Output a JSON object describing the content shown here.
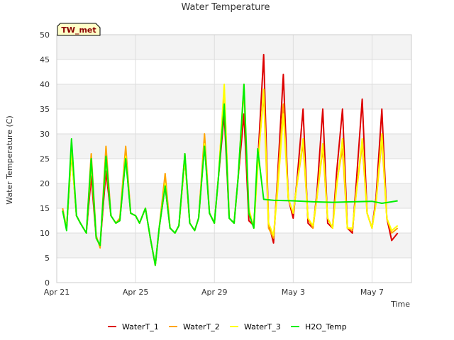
{
  "chart_data": {
    "type": "line",
    "title": "Water Temperature",
    "xlabel": "Time",
    "ylabel": "Water Temperature (C)",
    "badge": "TW_met",
    "x_unit": "days from Apr 21",
    "xlim": [
      0,
      18
    ],
    "ylim": [
      0,
      50
    ],
    "yticks": [
      0,
      5,
      10,
      15,
      20,
      25,
      30,
      35,
      40,
      45,
      50
    ],
    "xticks": [
      {
        "value": 0,
        "label": "Apr 21"
      },
      {
        "value": 4,
        "label": "Apr 25"
      },
      {
        "value": 8,
        "label": "Apr 29"
      },
      {
        "value": 12,
        "label": "May 3"
      },
      {
        "value": 16,
        "label": "May 7"
      }
    ],
    "grid": true,
    "legend_position": "bottom",
    "series": [
      {
        "name": "WaterT_1",
        "color": "#dd0000",
        "x": [
          0.3,
          0.5,
          0.75,
          1.0,
          1.2,
          1.5,
          1.75,
          2.0,
          2.2,
          2.5,
          2.75,
          3.0,
          3.2,
          3.5,
          3.75,
          4.0,
          4.2,
          4.5,
          4.75,
          5.0,
          5.2,
          5.5,
          5.75,
          6.0,
          6.2,
          6.5,
          6.75,
          7.0,
          7.2,
          7.5,
          7.75,
          8.0,
          8.2,
          8.5,
          8.75,
          9.0,
          9.2,
          9.5,
          9.75,
          10.0,
          10.2,
          10.5,
          10.75,
          11.0,
          11.2,
          11.5,
          11.75,
          12.0,
          12.2,
          12.5,
          12.75,
          13.0,
          13.2,
          13.5,
          13.75,
          14.0,
          14.2,
          14.5,
          14.75,
          15.0,
          15.2,
          15.5,
          15.75,
          16.0,
          16.2,
          16.5,
          16.75,
          17.0,
          17.3
        ],
        "y": [
          14.5,
          11.0,
          26.5,
          13.5,
          12.0,
          10.0,
          21.5,
          9.0,
          7.5,
          22.5,
          13.5,
          12.0,
          12.5,
          25.5,
          14.0,
          13.5,
          12.0,
          15.0,
          9.0,
          3.5,
          11.0,
          19.5,
          11.0,
          10.0,
          11.5,
          25.0,
          12.0,
          10.5,
          13.0,
          28.0,
          14.0,
          12.0,
          21.0,
          34.0,
          13.0,
          12.0,
          21.0,
          34.0,
          12.5,
          11.5,
          24.0,
          46.0,
          12.0,
          8.0,
          21.0,
          42.0,
          17.0,
          13.0,
          21.0,
          35.0,
          12.0,
          11.0,
          18.0,
          35.0,
          12.0,
          11.0,
          22.0,
          35.0,
          11.0,
          10.0,
          20.0,
          37.0,
          14.0,
          11.0,
          17.0,
          35.0,
          13.0,
          8.5,
          10.0
        ]
      },
      {
        "name": "WaterT_2",
        "color": "#ffa500",
        "x": [
          0.3,
          0.5,
          0.75,
          1.0,
          1.2,
          1.5,
          1.75,
          2.0,
          2.2,
          2.5,
          2.75,
          3.0,
          3.2,
          3.5,
          3.75,
          4.0,
          4.2,
          4.5,
          4.75,
          5.0,
          5.2,
          5.5,
          5.75,
          6.0,
          6.2,
          6.5,
          6.75,
          7.0,
          7.2,
          7.5,
          7.75,
          8.0,
          8.2,
          8.5,
          8.75,
          9.0,
          9.2,
          9.5,
          9.75,
          10.0,
          10.2,
          10.5,
          10.75,
          11.0,
          11.2,
          11.5,
          11.75,
          12.0,
          12.2,
          12.5,
          12.75,
          13.0,
          13.2,
          13.5,
          13.75,
          14.0,
          14.2,
          14.5,
          14.75,
          15.0,
          15.2,
          15.5,
          15.75,
          16.0,
          16.2,
          16.5,
          16.75,
          17.0,
          17.3
        ],
        "y": [
          15.0,
          11.0,
          26.0,
          13.5,
          12.0,
          10.0,
          26.0,
          9.5,
          7.0,
          27.5,
          13.5,
          12.0,
          13.0,
          27.5,
          14.0,
          13.5,
          12.0,
          15.0,
          9.0,
          3.5,
          11.0,
          22.0,
          11.0,
          10.0,
          11.5,
          26.0,
          12.0,
          10.5,
          13.0,
          30.0,
          14.0,
          12.0,
          21.0,
          39.0,
          13.0,
          12.0,
          21.0,
          39.0,
          14.0,
          11.0,
          24.0,
          38.0,
          11.0,
          9.0,
          20.0,
          36.0,
          17.0,
          14.0,
          20.0,
          28.0,
          13.0,
          11.0,
          17.0,
          27.0,
          13.0,
          11.0,
          20.0,
          27.0,
          11.0,
          10.5,
          18.0,
          28.0,
          14.0,
          11.0,
          16.0,
          29.0,
          13.0,
          10.0,
          11.0
        ]
      },
      {
        "name": "WaterT_3",
        "color": "#ffff00",
        "x": [
          0.3,
          0.5,
          0.75,
          1.0,
          1.2,
          1.5,
          1.75,
          2.0,
          2.2,
          2.5,
          2.75,
          3.0,
          3.2,
          3.5,
          3.75,
          4.0,
          4.2,
          4.5,
          4.75,
          5.0,
          5.2,
          5.5,
          5.75,
          6.0,
          6.2,
          6.5,
          6.75,
          7.0,
          7.2,
          7.5,
          7.75,
          8.0,
          8.2,
          8.5,
          8.75,
          9.0,
          9.2,
          9.5,
          9.75,
          10.0,
          10.2,
          10.5,
          10.75,
          11.0,
          11.2,
          11.5,
          11.75,
          12.0,
          12.2,
          12.5,
          12.75,
          13.0,
          13.2,
          13.5,
          13.75,
          14.0,
          14.2,
          14.5,
          14.75,
          15.0,
          15.2,
          15.5,
          15.75,
          16.0,
          16.2,
          16.5,
          16.75,
          17.0,
          17.3
        ],
        "y": [
          14.5,
          11.0,
          26.5,
          13.5,
          12.0,
          10.0,
          24.0,
          9.0,
          7.5,
          25.0,
          13.5,
          12.0,
          12.5,
          25.5,
          14.0,
          13.5,
          12.0,
          15.0,
          9.0,
          3.5,
          11.0,
          20.0,
          11.0,
          10.0,
          11.5,
          25.0,
          12.0,
          10.5,
          13.0,
          28.0,
          14.0,
          12.0,
          21.0,
          40.0,
          13.0,
          12.0,
          21.0,
          40.0,
          15.0,
          11.0,
          23.0,
          39.0,
          12.0,
          9.5,
          18.0,
          34.0,
          17.0,
          14.0,
          20.0,
          29.0,
          13.0,
          11.5,
          17.0,
          28.0,
          13.0,
          11.0,
          19.0,
          29.0,
          11.0,
          11.0,
          18.0,
          29.0,
          14.0,
          11.0,
          16.0,
          30.0,
          13.0,
          10.5,
          11.5
        ]
      },
      {
        "name": "H2O_Temp",
        "color": "#00ee00",
        "x": [
          0.3,
          0.5,
          0.75,
          1.0,
          1.2,
          1.5,
          1.75,
          2.0,
          2.2,
          2.5,
          2.75,
          3.0,
          3.2,
          3.5,
          3.75,
          4.0,
          4.2,
          4.5,
          4.75,
          5.0,
          5.2,
          5.5,
          5.75,
          6.0,
          6.2,
          6.5,
          6.75,
          7.0,
          7.2,
          7.5,
          7.75,
          8.0,
          8.2,
          8.5,
          8.75,
          9.0,
          9.2,
          9.5,
          9.75,
          10.0,
          10.2,
          10.5,
          11.0,
          12.0,
          13.0,
          14.0,
          15.0,
          16.0,
          16.5,
          17.0,
          17.3
        ],
        "y": [
          14.5,
          10.5,
          29.0,
          13.5,
          12.0,
          10.0,
          25.0,
          9.0,
          7.5,
          25.5,
          13.5,
          12.0,
          12.5,
          25.0,
          14.0,
          13.5,
          12.0,
          15.0,
          9.0,
          3.5,
          11.0,
          19.5,
          11.0,
          10.0,
          11.5,
          26.0,
          12.0,
          10.5,
          13.0,
          27.5,
          14.0,
          12.0,
          21.0,
          36.0,
          13.0,
          12.0,
          21.0,
          40.0,
          14.0,
          11.0,
          27.0,
          16.8,
          16.6,
          16.5,
          16.3,
          16.2,
          16.3,
          16.4,
          16.0,
          16.3,
          16.5
        ]
      }
    ]
  }
}
